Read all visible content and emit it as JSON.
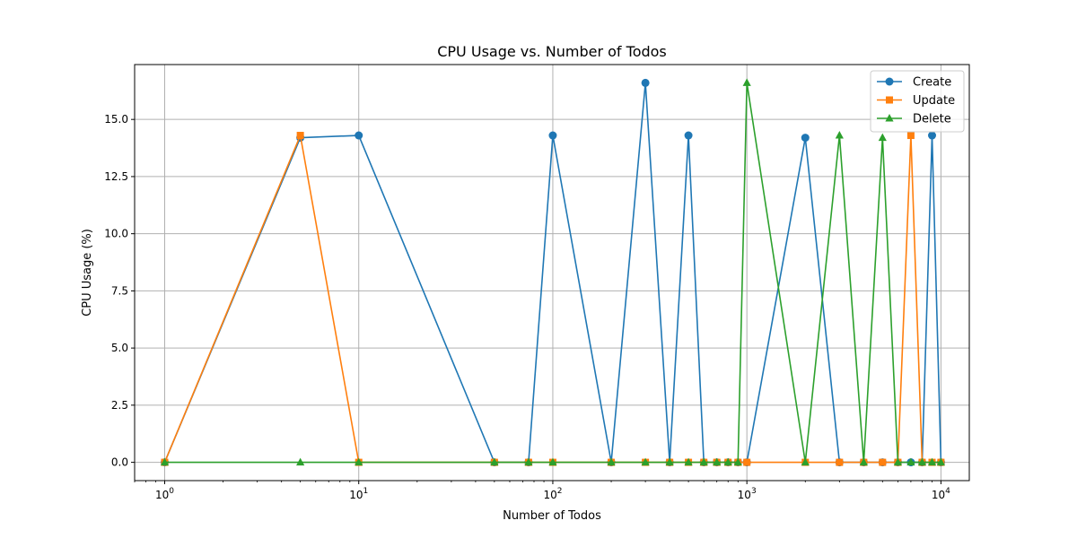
{
  "chart_data": {
    "type": "line",
    "title": "CPU Usage vs. Number of Todos",
    "xlabel": "Number of Todos",
    "ylabel": "CPU Usage (%)",
    "xscale": "log",
    "xlim": [
      0.7,
      14000
    ],
    "ylim": [
      -0.8,
      17.4
    ],
    "grid": true,
    "legend": "top-right",
    "x": [
      1,
      5,
      10,
      50,
      75,
      100,
      200,
      300,
      400,
      500,
      600,
      700,
      800,
      900,
      1000,
      2000,
      3000,
      4000,
      5000,
      6000,
      7000,
      8000,
      9000,
      10000
    ],
    "x_ticks": [
      {
        "value": 1,
        "base": "10",
        "exp": "0"
      },
      {
        "value": 10,
        "base": "10",
        "exp": "1"
      },
      {
        "value": 100,
        "base": "10",
        "exp": "2"
      },
      {
        "value": 1000,
        "base": "10",
        "exp": "3"
      },
      {
        "value": 10000,
        "base": "10",
        "exp": "4"
      }
    ],
    "y_ticks": [
      0,
      2.5,
      5,
      7.5,
      10,
      12.5,
      15
    ],
    "y_tick_labels": [
      "0.0",
      "2.5",
      "5.0",
      "7.5",
      "10.0",
      "12.5",
      "15.0"
    ],
    "series": [
      {
        "name": "Create",
        "color": "#1f77b4",
        "marker": "circle",
        "values": [
          0,
          14.2,
          14.3,
          0,
          0,
          14.3,
          0,
          16.6,
          0,
          14.3,
          0,
          0,
          0,
          0,
          0,
          14.2,
          0,
          0,
          0,
          0,
          0,
          0,
          14.3,
          0
        ]
      },
      {
        "name": "Update",
        "color": "#ff7f0e",
        "marker": "square",
        "values": [
          0,
          14.3,
          0,
          0,
          0,
          0,
          0,
          0,
          0,
          0,
          0,
          0,
          0,
          0,
          0,
          0,
          0,
          0,
          0,
          0,
          14.3,
          0,
          0,
          0
        ]
      },
      {
        "name": "Delete",
        "color": "#2ca02c",
        "marker": "triangle",
        "values": [
          0,
          0,
          0,
          0,
          0,
          0,
          0,
          0,
          0,
          0,
          0,
          0,
          0,
          0,
          16.6,
          0,
          14.3,
          0,
          14.2,
          0,
          0,
          0,
          0,
          0
        ]
      }
    ]
  }
}
